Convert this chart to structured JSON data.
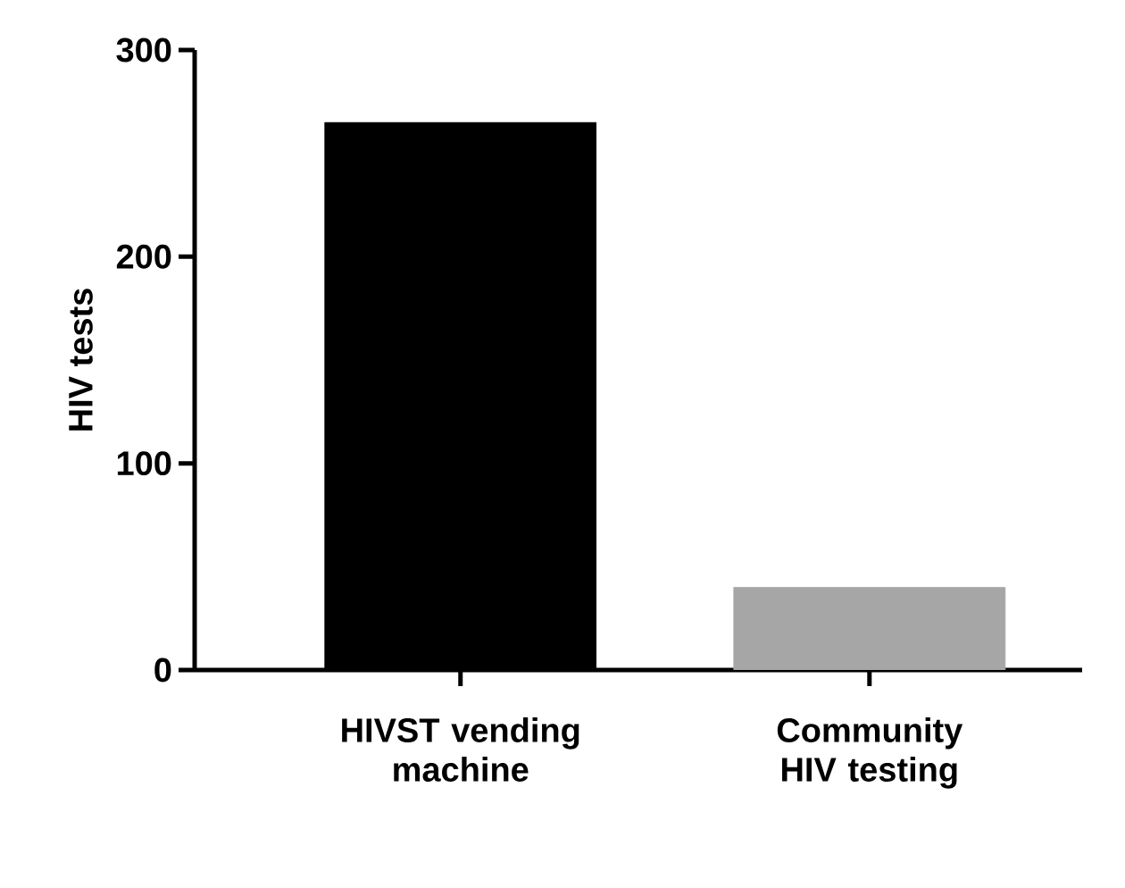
{
  "chart_data": {
    "type": "bar",
    "ylabel": "HIV tests",
    "categories": [
      "HIVST vending machine",
      "Community HIV testing"
    ],
    "values": [
      265,
      40
    ],
    "colors": [
      "#000000",
      "#a6a6a6"
    ],
    "ylim": [
      0,
      300
    ],
    "yticks": [
      0,
      100,
      200,
      300
    ]
  }
}
